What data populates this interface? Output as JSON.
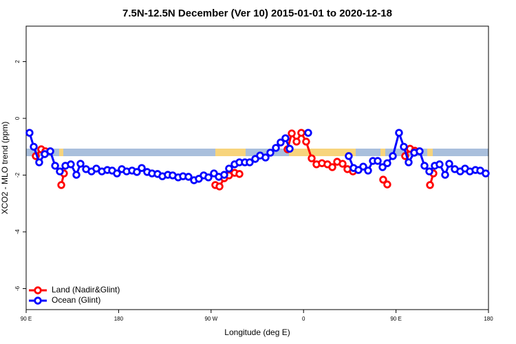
{
  "chart_data": {
    "type": "scatter",
    "title": "7.5N-12.5N December (Ver 10)   2015-01-01 to 2020-12-18",
    "xlabel": "Longitude (deg E)",
    "ylabel": "XCO2 - MLO trend (ppm)",
    "xlim": [
      90,
      540
    ],
    "ylim": [
      -6.74,
      3.25
    ],
    "xticks": [
      {
        "value": 90,
        "label": "90 E"
      },
      180,
      {
        "value": 270,
        "label": "90 W"
      },
      {
        "value": 360,
        "label": "0"
      },
      {
        "value": 450,
        "label": "90 E"
      },
      {
        "value": 540,
        "label": "180"
      }
    ],
    "yticks": [
      -6,
      -4,
      -2,
      0,
      2
    ],
    "legend": "bottom-left",
    "series": [
      {
        "name": "Land (Nadir&Glint)",
        "color": "#ff0000",
        "x": [
          99.4,
          104.7,
          108.7,
          null,
          124.2,
          126.8,
          null,
          274.1,
          278.2,
          282.8,
          287.5,
          292.9,
          297.6,
          null,
          344.4,
          348.5,
          353.2,
          357.8,
          362.5,
          367.9,
          372.6,
          377.9,
          383.3,
          388.0,
          392.7,
          398.0,
          402.7,
          408.1,
          null,
          437.5,
          441.5,
          null,
          458.9,
          463.6,
          468.3,
          null,
          483.1,
          486.4
        ],
        "values": [
          -1.33,
          -1.09,
          -1.16,
          null,
          -2.35,
          -1.94,
          null,
          -2.35,
          -2.4,
          -2.11,
          -2.01,
          -1.92,
          -1.96,
          null,
          -1.09,
          -0.53,
          -0.82,
          -0.51,
          -0.82,
          -1.41,
          -1.62,
          -1.58,
          -1.62,
          -1.72,
          -1.53,
          -1.6,
          -1.79,
          -1.87,
          null,
          -2.16,
          -2.33,
          null,
          -1.33,
          -1.07,
          -1.14,
          null,
          -2.35,
          -1.94
        ]
      },
      {
        "name": "Ocean (Glint)",
        "color": "#0000ff",
        "x": [
          93.3,
          97.4,
          102.7,
          108.1,
          113.5,
          118.2,
          122.8,
          128.2,
          133.5,
          138.9,
          142.9,
          148.3,
          153.6,
          158.3,
          163.7,
          169.0,
          173.7,
          178.4,
          183.1,
          187.8,
          193.1,
          197.8,
          202.5,
          207.8,
          212.5,
          217.9,
          222.6,
          227.9,
          232.6,
          238.0,
          242.7,
          248.0,
          253.4,
          258.1,
          262.8,
          267.4,
          272.8,
          277.5,
          282.8,
          287.5,
          292.9,
          297.6,
          302.9,
          307.6,
          313.0,
          317.7,
          323.0,
          327.7,
          333.1,
          337.7,
          342.4,
          346.5,
          null,
          364.5,
          null,
          404.0,
          408.7,
          413.4,
          418.1,
          422.8,
          427.5,
          432.2,
          436.9,
          441.5,
          446.9,
          452.9,
          457.6,
          462.3,
          467.7,
          473.0,
          477.7,
          482.4,
          487.7,
          492.4,
          497.8,
          501.8,
          507.2,
          512.5,
          517.2,
          521.9,
          527.3,
          532.0,
          537.3
        ],
        "values": [
          -0.51,
          -1.0,
          -1.55,
          -1.26,
          -1.16,
          -1.67,
          -1.87,
          -1.67,
          -1.62,
          -1.99,
          -1.6,
          -1.79,
          -1.87,
          -1.77,
          -1.87,
          -1.82,
          -1.84,
          -1.94,
          -1.79,
          -1.87,
          -1.84,
          -1.89,
          -1.75,
          -1.89,
          -1.94,
          -1.96,
          -2.04,
          -1.99,
          -2.01,
          -2.08,
          -2.04,
          -2.06,
          -2.18,
          -2.13,
          -2.01,
          -2.08,
          -1.94,
          -2.06,
          -1.99,
          -1.77,
          -1.62,
          -1.55,
          -1.55,
          -1.55,
          -1.43,
          -1.31,
          -1.38,
          -1.21,
          -1.04,
          -0.85,
          -0.7,
          -1.07,
          null,
          -0.51,
          null,
          -1.33,
          -1.75,
          -1.82,
          -1.7,
          -1.84,
          -1.5,
          -1.5,
          -1.72,
          -1.58,
          -1.33,
          -0.51,
          -1.0,
          -1.55,
          -1.21,
          -1.16,
          -1.67,
          -1.87,
          -1.67,
          -1.62,
          -1.99,
          -1.6,
          -1.79,
          -1.87,
          -1.77,
          -1.87,
          -1.82,
          -1.84,
          -1.94
        ]
      }
    ]
  }
}
